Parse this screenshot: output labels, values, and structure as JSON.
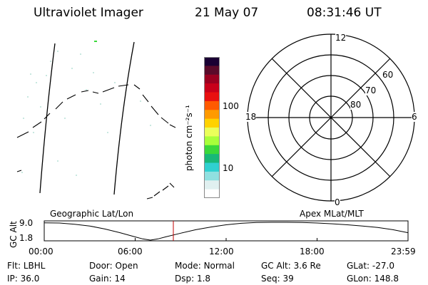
{
  "header": {
    "instrument": "Ultraviolet Imager",
    "date": "21 May 07",
    "time": "08:31:46 UT"
  },
  "geo_panel": {
    "label": "Geographic Lat/Lon"
  },
  "colorbar": {
    "unit_label": "photon cm⁻²s⁻¹",
    "ticks": [
      "100",
      "10"
    ],
    "colors": [
      "#1a0033",
      "#5a0a2a",
      "#9a0020",
      "#c8001a",
      "#e81010",
      "#ff5a00",
      "#ff9a00",
      "#ffd200",
      "#eaff5a",
      "#a8ff3a",
      "#3ad83a",
      "#18b878",
      "#30d0d0",
      "#90e0e0",
      "#e0f0f0",
      "#ffffff"
    ]
  },
  "polar_plot": {
    "label": "Apex MLat/MLT",
    "mlt_labels": {
      "top": "12",
      "left": "18",
      "right": "6",
      "bottom": "0"
    },
    "lat_labels": [
      "60",
      "70",
      "80"
    ]
  },
  "orbit_plot": {
    "ylabel": "GC Alt",
    "y_ticks": [
      "9.0",
      "1.8"
    ],
    "x_ticks": [
      "00:00",
      "06:00",
      "12:00",
      "18:00",
      "23:59"
    ],
    "marker_color": "#c00000"
  },
  "chart_data": {
    "type": "line",
    "title": "",
    "xlabel": "",
    "ylabel": "GC Alt",
    "x_range": [
      "00:00",
      "23:59"
    ],
    "ylim": [
      1.8,
      9.0
    ],
    "x_hours": [
      0,
      1,
      2,
      3,
      4,
      5,
      6,
      6.5,
      7,
      7.5,
      8,
      9,
      10,
      11,
      12,
      13,
      14,
      15,
      16,
      17,
      18,
      19,
      20,
      21,
      22,
      23,
      24
    ],
    "y": [
      8.8,
      8.7,
      8.2,
      7.5,
      6.3,
      4.8,
      3.1,
      2.3,
      1.8,
      2.3,
      3.1,
      4.6,
      6.0,
      7.1,
      8.0,
      8.6,
      8.9,
      9.0,
      9.0,
      8.9,
      8.7,
      8.4,
      8.0,
      7.5,
      6.9,
      6.0,
      4.8
    ],
    "current_time": "08:31"
  },
  "footer": [
    {
      "key": "Flt:",
      "value": "LBHL"
    },
    {
      "key": "Door:",
      "value": "Open"
    },
    {
      "key": "Mode:",
      "value": "Normal"
    },
    {
      "key": "GC Alt:",
      "value": "3.6 Re"
    },
    {
      "key": "GLat:",
      "value": "-27.0"
    },
    {
      "key": "IP:",
      "value": "36.0"
    },
    {
      "key": "Gain:",
      "value": "14"
    },
    {
      "key": "Dsp:",
      "value": "1.8"
    },
    {
      "key": "Seq:",
      "value": "39"
    },
    {
      "key": "GLon:",
      "value": "148.8"
    }
  ]
}
